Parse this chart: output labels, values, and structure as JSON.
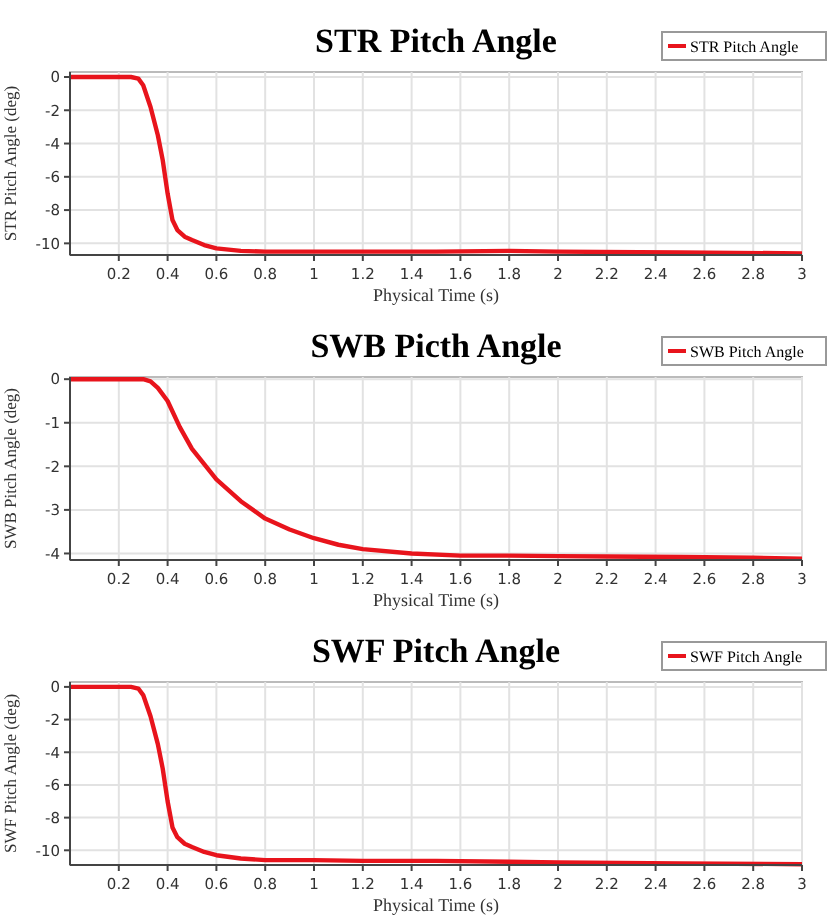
{
  "chart_data": [
    {
      "type": "line",
      "title": "STR Pitch Angle",
      "xlabel": "Physical Time (s)",
      "ylabel": "STR Pitch Angle (deg)",
      "legend": "top right",
      "grid": true,
      "xlim": [
        0,
        3
      ],
      "xticks": [
        0.2,
        0.4,
        0.6,
        0.8,
        1,
        1.2,
        1.4,
        1.6,
        1.8,
        2,
        2.2,
        2.4,
        2.6,
        2.8,
        3
      ],
      "ylim": [
        -10.7,
        0.3
      ],
      "yticks": [
        -10,
        -8,
        -6,
        -4,
        -2,
        0
      ],
      "series": [
        {
          "name": "STR Pitch Angle",
          "color": "#e8141c",
          "x": [
            0,
            0.2,
            0.25,
            0.28,
            0.3,
            0.33,
            0.36,
            0.38,
            0.4,
            0.42,
            0.44,
            0.47,
            0.5,
            0.55,
            0.6,
            0.7,
            0.8,
            1,
            1.2,
            1.5,
            1.8,
            2,
            2.5,
            3
          ],
          "values": [
            0,
            0,
            0,
            -0.1,
            -0.5,
            -1.8,
            -3.5,
            -5,
            -7,
            -8.6,
            -9.2,
            -9.6,
            -9.8,
            -10.1,
            -10.3,
            -10.45,
            -10.5,
            -10.5,
            -10.5,
            -10.5,
            -10.45,
            -10.5,
            -10.55,
            -10.6
          ]
        }
      ]
    },
    {
      "type": "line",
      "title": "SWB Picth Angle",
      "xlabel": "Physical Time (s)",
      "ylabel": "SWB Pitch Angle (deg)",
      "legend": "top right",
      "grid": true,
      "xlim": [
        0,
        3
      ],
      "xticks": [
        0.2,
        0.4,
        0.6,
        0.8,
        1,
        1.2,
        1.4,
        1.6,
        1.8,
        2,
        2.2,
        2.4,
        2.6,
        2.8,
        3
      ],
      "ylim": [
        -4.15,
        0.05
      ],
      "yticks": [
        -4,
        -3,
        -2,
        -1,
        0
      ],
      "series": [
        {
          "name": "SWB Pitch Angle",
          "color": "#e8141c",
          "x": [
            0,
            0.2,
            0.3,
            0.33,
            0.36,
            0.4,
            0.45,
            0.5,
            0.6,
            0.7,
            0.8,
            0.9,
            1,
            1.1,
            1.2,
            1.4,
            1.6,
            1.8,
            2,
            2.2,
            2.5,
            2.8,
            3
          ],
          "values": [
            0,
            0,
            0,
            -0.05,
            -0.2,
            -0.5,
            -1.1,
            -1.6,
            -2.3,
            -2.8,
            -3.2,
            -3.45,
            -3.65,
            -3.8,
            -3.9,
            -4,
            -4.05,
            -4.05,
            -4.06,
            -4.07,
            -4.08,
            -4.1,
            -4.12
          ]
        }
      ]
    },
    {
      "type": "line",
      "title": "SWF Pitch Angle",
      "xlabel": "Physical Time (s)",
      "ylabel": "SWF Pitch Angle (deg)",
      "legend": "top right",
      "grid": true,
      "xlim": [
        0,
        3
      ],
      "xticks": [
        0.2,
        0.4,
        0.6,
        0.8,
        1,
        1.2,
        1.4,
        1.6,
        1.8,
        2,
        2.2,
        2.4,
        2.6,
        2.8,
        3
      ],
      "ylim": [
        -10.9,
        0.3
      ],
      "yticks": [
        -10,
        -8,
        -6,
        -4,
        -2,
        0
      ],
      "series": [
        {
          "name": "SWF Pitch Angle",
          "color": "#e8141c",
          "x": [
            0,
            0.2,
            0.25,
            0.28,
            0.3,
            0.33,
            0.36,
            0.38,
            0.4,
            0.42,
            0.44,
            0.47,
            0.5,
            0.55,
            0.6,
            0.7,
            0.8,
            1,
            1.2,
            1.5,
            1.8,
            2,
            2.5,
            3
          ],
          "values": [
            0,
            0,
            0,
            -0.1,
            -0.5,
            -1.8,
            -3.5,
            -5,
            -7,
            -8.6,
            -9.2,
            -9.6,
            -9.8,
            -10.1,
            -10.3,
            -10.5,
            -10.6,
            -10.6,
            -10.65,
            -10.65,
            -10.7,
            -10.75,
            -10.8,
            -10.85
          ]
        }
      ]
    }
  ]
}
